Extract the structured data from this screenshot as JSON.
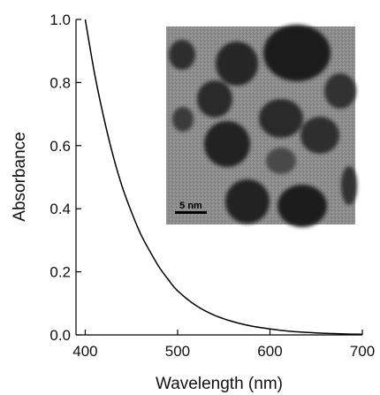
{
  "chart_data": {
    "type": "line",
    "title": "",
    "xlabel": "Wavelength (nm)",
    "ylabel": "Absorbance",
    "xlim": [
      390,
      700
    ],
    "ylim": [
      0.0,
      1.0
    ],
    "xticks": [
      400,
      500,
      600,
      700
    ],
    "xtick_labels": [
      "400",
      "500",
      "600",
      "700"
    ],
    "yticks": [
      0.0,
      0.2,
      0.4,
      0.6,
      0.8,
      1.0
    ],
    "ytick_labels": [
      "0.0",
      "0.2",
      "0.4",
      "0.6",
      "0.8",
      "1.0"
    ],
    "grid": false,
    "legend": "none",
    "series": [
      {
        "color": "#000000",
        "x": [
          400,
          410,
          420,
          430,
          440,
          450,
          460,
          470,
          480,
          490,
          500,
          520,
          540,
          560,
          580,
          600,
          620,
          640,
          660,
          680,
          700
        ],
        "y": [
          1.0,
          0.83,
          0.69,
          0.57,
          0.47,
          0.39,
          0.32,
          0.265,
          0.215,
          0.175,
          0.14,
          0.093,
          0.062,
          0.042,
          0.028,
          0.019,
          0.012,
          0.008,
          0.005,
          0.003,
          0.002
        ]
      }
    ]
  },
  "inset": {
    "image_type": "TEM micrograph of nanoparticles",
    "scale_bar_label": "5 nm"
  }
}
